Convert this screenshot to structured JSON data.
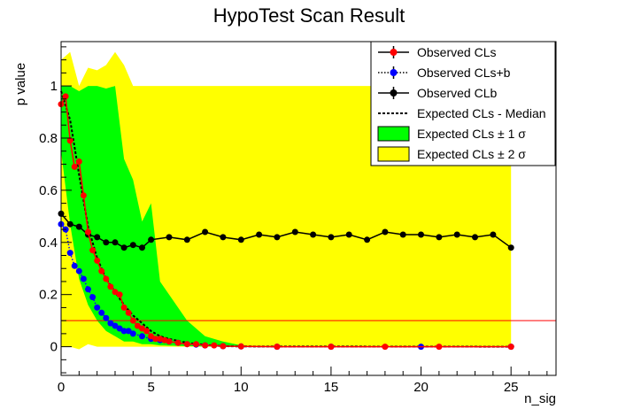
{
  "chart_data": {
    "type": "line",
    "title": "HypoTest Scan Result",
    "xlabel": "n_sig",
    "ylabel": "p value",
    "xlim": [
      0,
      27.5
    ],
    "ylim": [
      -0.11,
      1.17
    ],
    "x_ticks": [
      0,
      5,
      10,
      15,
      20,
      25
    ],
    "y_ticks": [
      0,
      0.2,
      0.4,
      0.6,
      0.8,
      1
    ],
    "x_tick_labels": [
      "0",
      "5",
      "10",
      "15",
      "20",
      "25"
    ],
    "y_tick_labels": [
      "0",
      "0.2",
      "0.4",
      "0.6",
      "0.8",
      "1"
    ],
    "grid": false,
    "legend_position": "top-right",
    "threshold": {
      "y": 0.1,
      "color": "#ff0000"
    },
    "colors": {
      "cls": "#ff0000",
      "clsb": "#0000ff",
      "clb": "#000000",
      "band1": "#00ff00",
      "band2": "#ffff00",
      "median": "#000000"
    },
    "legend": [
      {
        "label": "Observed CLs",
        "kind": "marker-line",
        "color": "#ff0000"
      },
      {
        "label": "Observed CLs+b",
        "kind": "marker-dotted",
        "color": "#0000ff"
      },
      {
        "label": "Observed CLb",
        "kind": "marker-line",
        "color": "#000000"
      },
      {
        "label": "Expected CLs - Median",
        "kind": "dashed",
        "color": "#000000"
      },
      {
        "label": "Expected CLs ± 1 σ",
        "kind": "box",
        "color": "#00ff00"
      },
      {
        "label": "Expected CLs ± 2 σ",
        "kind": "box",
        "color": "#ffff00"
      }
    ],
    "series": [
      {
        "name": "Observed CLs",
        "x": [
          0,
          0.25,
          0.5,
          0.75,
          1,
          1.25,
          1.5,
          1.75,
          2,
          2.25,
          2.5,
          2.75,
          3,
          3.25,
          3.5,
          3.75,
          4,
          4.25,
          4.5,
          4.75,
          5,
          5.25,
          5.5,
          5.75,
          6,
          6.5,
          7,
          7.5,
          8,
          8.5,
          9,
          10,
          12,
          15,
          18,
          21,
          25
        ],
        "y": [
          0.93,
          0.96,
          0.79,
          0.69,
          0.71,
          0.58,
          0.44,
          0.37,
          0.33,
          0.29,
          0.26,
          0.23,
          0.21,
          0.2,
          0.15,
          0.13,
          0.1,
          0.08,
          0.07,
          0.06,
          0.04,
          0.03,
          0.03,
          0.025,
          0.02,
          0.015,
          0.01,
          0.01,
          0.005,
          0.005,
          0.002,
          0.001,
          0.0,
          0.0,
          0.0,
          0.0,
          0.0
        ]
      },
      {
        "name": "Observed CLs+b",
        "x": [
          0,
          0.25,
          0.5,
          0.75,
          1,
          1.25,
          1.5,
          1.75,
          2,
          2.25,
          2.5,
          2.75,
          3,
          3.25,
          3.5,
          3.75,
          4,
          4.5,
          5,
          5.5,
          6,
          6.5,
          7,
          7.5,
          8,
          9,
          10,
          12,
          15,
          20,
          25
        ],
        "y": [
          0.47,
          0.45,
          0.36,
          0.31,
          0.29,
          0.26,
          0.22,
          0.19,
          0.15,
          0.13,
          0.11,
          0.09,
          0.08,
          0.07,
          0.06,
          0.06,
          0.05,
          0.04,
          0.03,
          0.025,
          0.02,
          0.015,
          0.01,
          0.008,
          0.005,
          0.002,
          0.001,
          0.0,
          0.0,
          0.0,
          0.0
        ]
      },
      {
        "name": "Observed CLb",
        "x": [
          0,
          0.5,
          1,
          1.5,
          2,
          2.5,
          3,
          3.5,
          4,
          4.5,
          5,
          6,
          7,
          8,
          9,
          10,
          11,
          12,
          13,
          14,
          15,
          16,
          17,
          18,
          19,
          20,
          21,
          22,
          23,
          24,
          25
        ],
        "y": [
          0.51,
          0.47,
          0.46,
          0.43,
          0.42,
          0.4,
          0.4,
          0.38,
          0.39,
          0.38,
          0.41,
          0.42,
          0.41,
          0.44,
          0.42,
          0.41,
          0.43,
          0.42,
          0.44,
          0.43,
          0.42,
          0.43,
          0.41,
          0.44,
          0.43,
          0.43,
          0.42,
          0.43,
          0.42,
          0.43,
          0.38
        ]
      },
      {
        "name": "Expected CLs - Median",
        "x": [
          0,
          0.5,
          1,
          1.5,
          2,
          2.5,
          3,
          3.5,
          4,
          4.5,
          5,
          5.5,
          6,
          7,
          8,
          9,
          10,
          25
        ],
        "y": [
          0.98,
          0.87,
          0.66,
          0.46,
          0.34,
          0.26,
          0.21,
          0.16,
          0.12,
          0.09,
          0.06,
          0.04,
          0.03,
          0.015,
          0.007,
          0.002,
          0.001,
          0.0
        ]
      }
    ],
    "bands": {
      "x": [
        0,
        0.5,
        1,
        1.5,
        2,
        2.5,
        3,
        3.5,
        4,
        4.5,
        5,
        5.5,
        6,
        7,
        8,
        9,
        10,
        11,
        12,
        25
      ],
      "sigma1_low": [
        0.75,
        0.47,
        0.26,
        0.16,
        0.1,
        0.06,
        0.04,
        0.02,
        0.02,
        0.01,
        0.01,
        0.005,
        0.004,
        0.002,
        0.001,
        0.0,
        0.0,
        0.0,
        0.0,
        0.0
      ],
      "sigma1_high": [
        1.0,
        1.0,
        0.98,
        1.0,
        1.0,
        0.99,
        1.0,
        0.72,
        0.64,
        0.48,
        0.55,
        0.25,
        0.2,
        0.1,
        0.04,
        0.02,
        0.005,
        0.002,
        0.0,
        0.0
      ],
      "sigma2_low": [
        0.0,
        0.0,
        -0.01,
        0.01,
        0.0,
        0.0,
        0.0,
        0.0,
        0.0,
        0.0,
        0.0,
        0.0,
        0.0,
        0.0,
        0.0,
        0.0,
        0.0,
        0.0,
        0.0,
        0.0
      ],
      "sigma2_high": [
        1.1,
        1.13,
        1.0,
        1.07,
        1.06,
        1.08,
        1.13,
        1.08,
        1.0,
        1.0,
        1.0,
        1.0,
        1.0,
        1.0,
        1.0,
        1.0,
        1.0,
        1.0,
        1.0,
        1.0
      ]
    }
  }
}
